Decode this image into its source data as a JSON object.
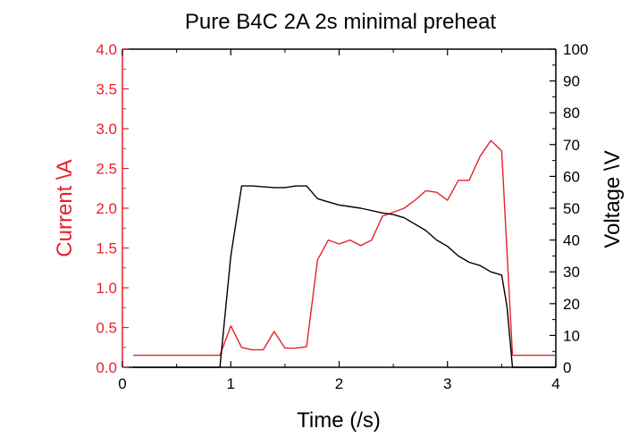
{
  "chart_data": {
    "type": "line",
    "title": "Pure B4C 2A 2s  minimal preheat",
    "xlabel": "Time (/s)",
    "ylabel_left": "Current \\A",
    "ylabel_right": "Voltage \\V",
    "xlim": [
      0,
      4
    ],
    "ylim_left": [
      0,
      4.0
    ],
    "ylim_right": [
      0,
      100
    ],
    "x_ticks": [
      "0",
      "1",
      "2",
      "3",
      "4"
    ],
    "y_left_ticks": [
      "0.0",
      "0.5",
      "1.0",
      "1.5",
      "2.0",
      "2.5",
      "3.0",
      "3.5",
      "4.0"
    ],
    "y_right_ticks": [
      "0",
      "10",
      "20",
      "30",
      "40",
      "50",
      "60",
      "70",
      "80",
      "90",
      "100"
    ],
    "grid": false,
    "colors": {
      "current": "#e8202a",
      "voltage": "#000000",
      "left_axis": "#e8202a",
      "right_axis": "#000000"
    },
    "series": [
      {
        "axis": "left",
        "x": [
          0.1,
          0.9,
          1.0,
          1.1,
          1.2,
          1.3,
          1.4,
          1.5,
          1.6,
          1.7,
          1.8,
          1.9,
          2.0,
          2.1,
          2.2,
          2.3,
          2.4,
          2.5,
          2.6,
          2.7,
          2.8,
          2.9,
          3.0,
          3.1,
          3.2,
          3.3,
          3.4,
          3.5,
          3.6,
          3.7,
          4.0
        ],
        "y": [
          0.15,
          0.15,
          0.52,
          0.25,
          0.22,
          0.22,
          0.45,
          0.24,
          0.24,
          0.26,
          1.35,
          1.6,
          1.55,
          1.6,
          1.53,
          1.6,
          1.9,
          1.95,
          2.0,
          2.1,
          2.22,
          2.2,
          2.1,
          2.35,
          2.35,
          2.65,
          2.85,
          2.72,
          0.15,
          0.15,
          0.15
        ]
      },
      {
        "axis": "right",
        "x": [
          0.1,
          0.9,
          1.0,
          1.1,
          1.2,
          1.4,
          1.5,
          1.6,
          1.7,
          1.8,
          1.9,
          2.0,
          2.2,
          2.4,
          2.5,
          2.6,
          2.8,
          2.9,
          3.0,
          3.1,
          3.2,
          3.3,
          3.4,
          3.5,
          3.55,
          3.6,
          4.0
        ],
        "y": [
          0,
          0,
          35,
          57,
          57,
          56.5,
          56.5,
          57,
          57,
          53,
          52,
          51,
          50,
          48.5,
          48,
          47,
          43,
          40,
          38,
          35,
          33,
          32,
          30,
          29,
          19,
          0,
          0
        ]
      }
    ]
  }
}
